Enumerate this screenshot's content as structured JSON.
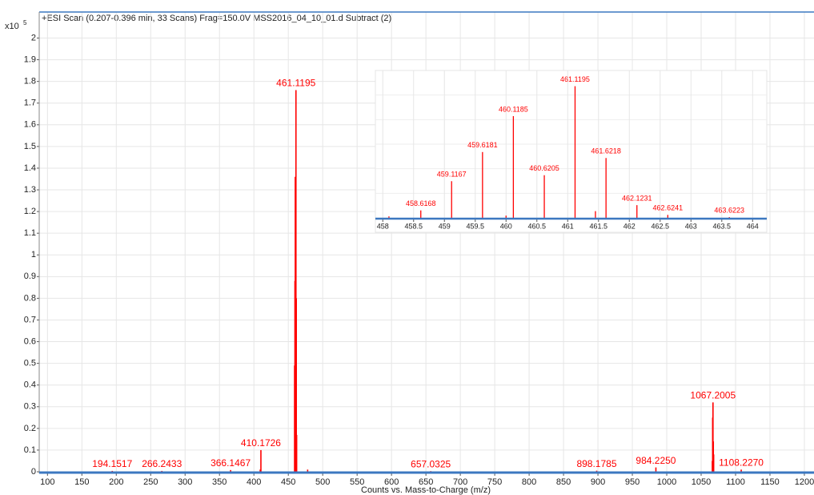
{
  "chart_data": [
    {
      "type": "stem",
      "title": "+ESI Scan (0.207-0.396 min, 33 Scans) Frag=150.0V MSS2016_04_10_01.d  Subtract (2)",
      "y_scale_label": "x10",
      "y_scale_exponent": "5",
      "x_label": "Counts vs. Mass-to-Charge (m/z)",
      "color": "#ff0000",
      "grid": true,
      "xlim": [
        88,
        1214
      ],
      "ylim": [
        0,
        2.12
      ],
      "xticks": [
        100,
        150,
        200,
        250,
        300,
        350,
        400,
        450,
        500,
        550,
        600,
        650,
        700,
        750,
        800,
        850,
        900,
        950,
        1000,
        1050,
        1100,
        1150,
        1200
      ],
      "yticks": [
        0,
        0.1,
        0.2,
        0.3,
        0.4,
        0.5,
        0.6,
        0.7,
        0.8,
        0.9,
        1,
        1.1,
        1.2,
        1.3,
        1.4,
        1.5,
        1.6,
        1.7,
        1.8,
        1.9,
        2
      ],
      "x": [
        194.1517,
        266.2433,
        366.1467,
        409.17,
        410.1726,
        459.1167,
        459.6181,
        460.1185,
        460.6205,
        461.1195,
        461.6218,
        462.1231,
        478.1,
        657.0325,
        898.1785,
        984.225,
        1066.2,
        1066.6995,
        1067.2005,
        1067.7015,
        1068.2,
        1108.227
      ],
      "values": [
        0.004,
        0.004,
        0.008,
        0.01,
        0.1,
        0.49,
        0.88,
        1.36,
        0.57,
        1.76,
        0.8,
        0.17,
        0.01,
        0.003,
        0.005,
        0.02,
        0.05,
        0.25,
        0.32,
        0.14,
        0.08,
        0.01
      ],
      "labels": [
        "194.1517",
        "266.2433",
        "366.1467",
        null,
        "410.1726",
        null,
        null,
        null,
        null,
        "461.1195",
        null,
        null,
        null,
        "657.0325",
        "898.1785",
        "984.2250",
        null,
        null,
        "1067.2005",
        null,
        null,
        "1108.2270"
      ]
    },
    {
      "type": "stem",
      "color": "#ff0000",
      "grid": true,
      "xlim": [
        457.88,
        464.23
      ],
      "ylim": [
        0,
        1.97
      ],
      "xticks": [
        458,
        458.5,
        459,
        459.5,
        460,
        460.5,
        461,
        461.5,
        462,
        462.5,
        463,
        463.5,
        464
      ],
      "x": [
        458.1,
        458.6168,
        459.1167,
        459.6181,
        460.0,
        460.1185,
        460.6205,
        461.1195,
        461.45,
        461.6218,
        462.1231,
        462.6241,
        463.6223
      ],
      "values": [
        0.02,
        0.1,
        0.49,
        0.88,
        0.03,
        1.36,
        0.57,
        1.76,
        0.09,
        0.8,
        0.17,
        0.04,
        0.01
      ],
      "labels": [
        null,
        "458.6168",
        "459.1167",
        "459.6181",
        null,
        "460.1185",
        "460.6205",
        "461.1195",
        null,
        "461.6218",
        "462.1231",
        "462.6241",
        "463.6223"
      ]
    }
  ]
}
